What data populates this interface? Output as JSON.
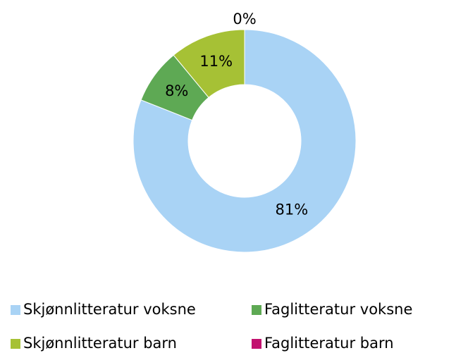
{
  "chart_data": {
    "type": "pie",
    "donut": true,
    "categories": [
      "Skjønnlitteratur voksne",
      "Faglitteratur voksne",
      "Skjønnlitteratur barn",
      "Faglitteratur barn"
    ],
    "values": [
      81,
      8,
      11,
      0
    ],
    "value_labels": [
      "81%",
      "8%",
      "11%",
      "0%"
    ],
    "colors": [
      "#a9d3f5",
      "#5ea954",
      "#a6c135",
      "#c2116f"
    ],
    "legend": "bottom"
  }
}
